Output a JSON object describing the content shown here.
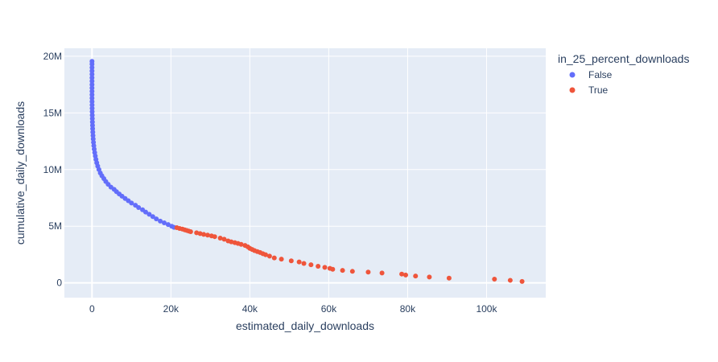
{
  "chart_data": {
    "type": "scatter",
    "xlabel": "estimated_daily_downloads",
    "ylabel": "cumulative_daily_downloads",
    "xlim": [
      -7000,
      115000
    ],
    "ylim": [
      -1300000,
      20700000
    ],
    "x_ticks": [
      {
        "value": 0,
        "label": "0"
      },
      {
        "value": 20000,
        "label": "20k"
      },
      {
        "value": 40000,
        "label": "40k"
      },
      {
        "value": 60000,
        "label": "60k"
      },
      {
        "value": 80000,
        "label": "80k"
      },
      {
        "value": 100000,
        "label": "100k"
      }
    ],
    "y_ticks": [
      {
        "value": 0,
        "label": "0"
      },
      {
        "value": 5000000,
        "label": "5M"
      },
      {
        "value": 10000000,
        "label": "10M"
      },
      {
        "value": 15000000,
        "label": "15M"
      },
      {
        "value": 20000000,
        "label": "20M"
      }
    ],
    "grid": true,
    "legend_title": "in_25_percent_downloads",
    "legend_position": "right",
    "series": [
      {
        "name": "False",
        "color": "#636efa",
        "points": [
          [
            0,
            19550000
          ],
          [
            0,
            19300000
          ],
          [
            0,
            19000000
          ],
          [
            0,
            18700000
          ],
          [
            0,
            18400000
          ],
          [
            0,
            18100000
          ],
          [
            0,
            17800000
          ],
          [
            0,
            17500000
          ],
          [
            0,
            17200000
          ],
          [
            0,
            16900000
          ],
          [
            0,
            16600000
          ],
          [
            0,
            16300000
          ],
          [
            10,
            16000000
          ],
          [
            20,
            15700000
          ],
          [
            30,
            15400000
          ],
          [
            40,
            15100000
          ],
          [
            60,
            14800000
          ],
          [
            80,
            14500000
          ],
          [
            100,
            14200000
          ],
          [
            130,
            13900000
          ],
          [
            160,
            13600000
          ],
          [
            200,
            13300000
          ],
          [
            250,
            13000000
          ],
          [
            300,
            12700000
          ],
          [
            370,
            12400000
          ],
          [
            450,
            12100000
          ],
          [
            550,
            11800000
          ],
          [
            680,
            11500000
          ],
          [
            830,
            11200000
          ],
          [
            1000,
            10900000
          ],
          [
            1200,
            10600000
          ],
          [
            1450,
            10300000
          ],
          [
            1750,
            10000000
          ],
          [
            2100,
            9700000
          ],
          [
            2500,
            9450000
          ],
          [
            3000,
            9200000
          ],
          [
            3500,
            8950000
          ],
          [
            4100,
            8700000
          ],
          [
            4800,
            8450000
          ],
          [
            5600,
            8250000
          ],
          [
            6200,
            8050000
          ],
          [
            6900,
            7850000
          ],
          [
            7600,
            7650000
          ],
          [
            8400,
            7450000
          ],
          [
            9200,
            7250000
          ],
          [
            10000,
            7050000
          ],
          [
            11000,
            6850000
          ],
          [
            11800,
            6650000
          ],
          [
            12800,
            6450000
          ],
          [
            13600,
            6250000
          ],
          [
            14500,
            6050000
          ],
          [
            15400,
            5850000
          ],
          [
            16300,
            5650000
          ],
          [
            17300,
            5450000
          ],
          [
            18300,
            5300000
          ],
          [
            19300,
            5150000
          ],
          [
            20200,
            5000000
          ],
          [
            20800,
            4900000
          ]
        ]
      },
      {
        "name": "True",
        "color": "#ef553b",
        "points": [
          [
            21500,
            4870000
          ],
          [
            22200,
            4800000
          ],
          [
            22900,
            4750000
          ],
          [
            23500,
            4680000
          ],
          [
            24000,
            4630000
          ],
          [
            24500,
            4570000
          ],
          [
            25000,
            4520000
          ],
          [
            26500,
            4420000
          ],
          [
            27400,
            4350000
          ],
          [
            28300,
            4280000
          ],
          [
            29300,
            4220000
          ],
          [
            30300,
            4150000
          ],
          [
            31100,
            4080000
          ],
          [
            32500,
            3950000
          ],
          [
            33500,
            3850000
          ],
          [
            34500,
            3700000
          ],
          [
            35300,
            3620000
          ],
          [
            36200,
            3550000
          ],
          [
            37000,
            3480000
          ],
          [
            37800,
            3400000
          ],
          [
            38800,
            3300000
          ],
          [
            39500,
            3180000
          ],
          [
            40000,
            3050000
          ],
          [
            40600,
            2950000
          ],
          [
            41200,
            2850000
          ],
          [
            41900,
            2760000
          ],
          [
            42600,
            2680000
          ],
          [
            43300,
            2580000
          ],
          [
            44000,
            2490000
          ],
          [
            45000,
            2360000
          ],
          [
            46200,
            2200000
          ],
          [
            48000,
            2100000
          ],
          [
            50500,
            1950000
          ],
          [
            52500,
            1850000
          ],
          [
            53700,
            1720000
          ],
          [
            55500,
            1600000
          ],
          [
            57300,
            1470000
          ],
          [
            59000,
            1370000
          ],
          [
            60300,
            1280000
          ],
          [
            61000,
            1200000
          ],
          [
            63500,
            1100000
          ],
          [
            66000,
            1020000
          ],
          [
            70000,
            950000
          ],
          [
            73500,
            870000
          ],
          [
            78500,
            780000
          ],
          [
            79500,
            700000
          ],
          [
            82000,
            610000
          ],
          [
            85500,
            520000
          ],
          [
            90500,
            420000
          ],
          [
            102000,
            330000
          ],
          [
            106000,
            230000
          ],
          [
            109000,
            130000
          ]
        ]
      }
    ]
  }
}
